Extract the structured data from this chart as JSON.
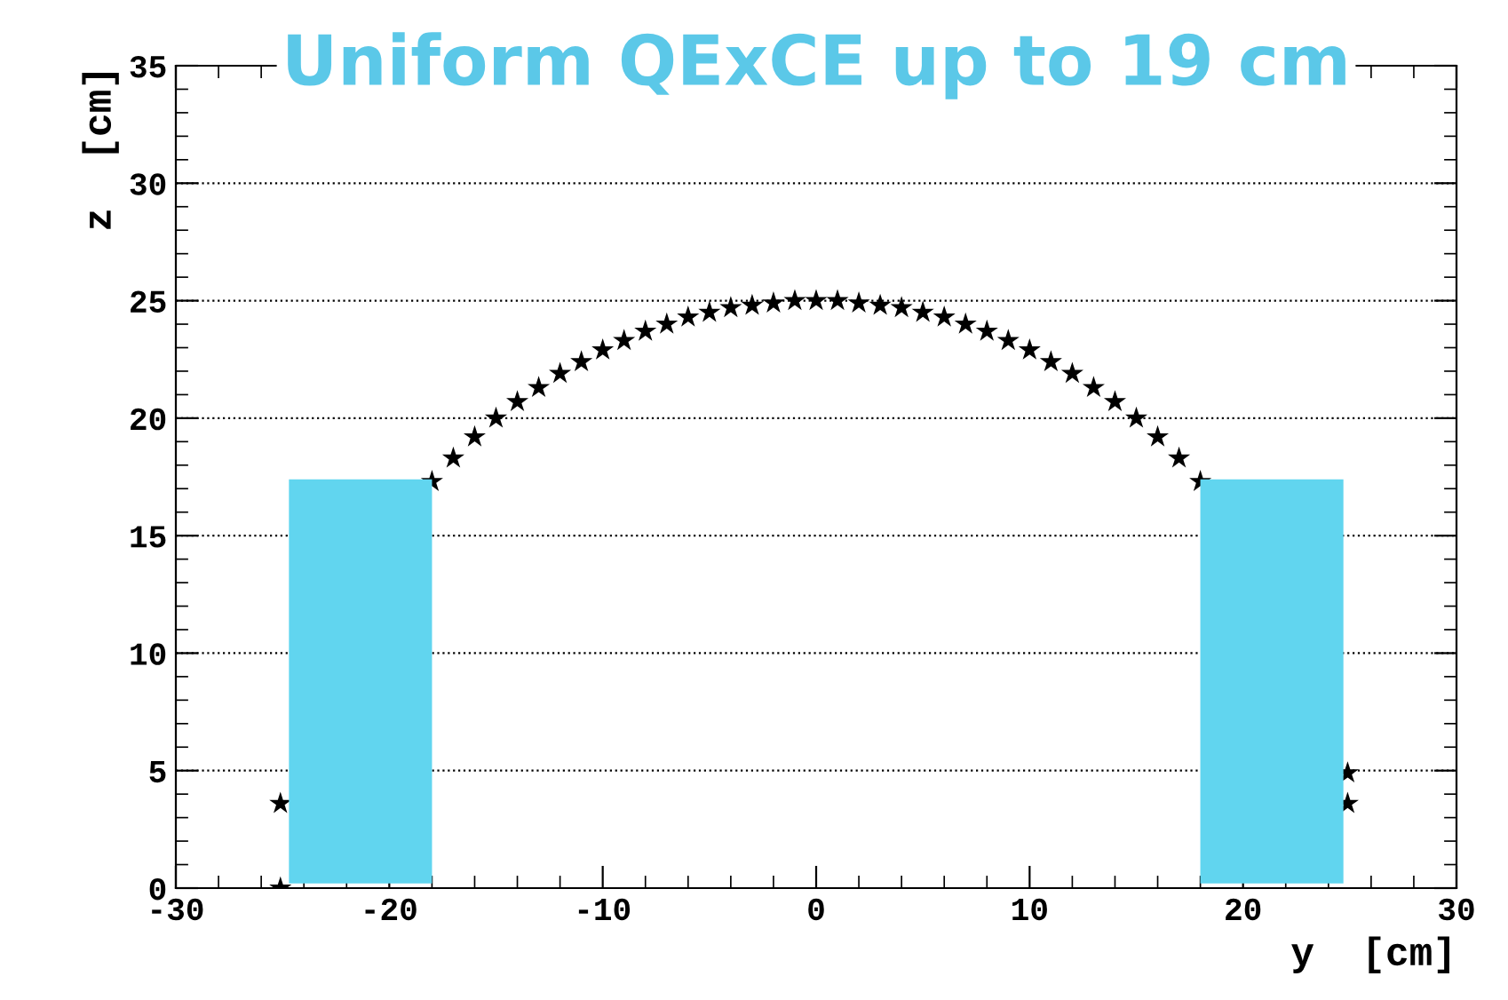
{
  "chart_data": {
    "type": "scatter",
    "title": "Uniform QExCE up to 19 cm",
    "xlabel": "y  [cm]",
    "ylabel": "z  [cm]",
    "xlim": [
      -30,
      30
    ],
    "xticks": [
      -30,
      -20,
      -10,
      0,
      10,
      20,
      30
    ],
    "ylim": [
      0,
      35
    ],
    "yticks": [
      0,
      5,
      10,
      15,
      20,
      25,
      30,
      35
    ],
    "grid": "y",
    "marker": "star",
    "series": [
      {
        "type": "bar",
        "color": "#61d5ef",
        "x": [
          -21.35,
          21.35
        ],
        "base": [
          0.2,
          0.2
        ],
        "values": [
          17.2,
          17.2
        ]
      },
      {
        "color": "#000000",
        "x": [
          -18,
          -17,
          -16,
          -15,
          -14,
          -13,
          -12,
          -11,
          -10,
          -9,
          -8,
          -7,
          -6,
          -5,
          -4,
          -3,
          -2,
          -1,
          0,
          1,
          2,
          3,
          4,
          5,
          6,
          7,
          8,
          9,
          10,
          11,
          12,
          13,
          14,
          15,
          16,
          17,
          18
        ],
        "values": [
          17.3,
          18.3,
          19.2,
          20.0,
          20.7,
          21.3,
          21.9,
          22.4,
          22.9,
          23.3,
          23.7,
          24.0,
          24.3,
          24.5,
          24.7,
          24.8,
          24.9,
          25.0,
          25.0,
          25.0,
          24.9,
          24.8,
          24.7,
          24.5,
          24.3,
          24.0,
          23.7,
          23.3,
          22.9,
          22.4,
          21.9,
          21.3,
          20.7,
          20.0,
          19.2,
          18.3,
          17.3
        ]
      },
      {
        "color": "#000000",
        "x": [
          -25.1,
          -25.1,
          24.9,
          24.9
        ],
        "values": [
          0.0,
          3.6,
          3.6,
          4.9
        ]
      }
    ]
  }
}
